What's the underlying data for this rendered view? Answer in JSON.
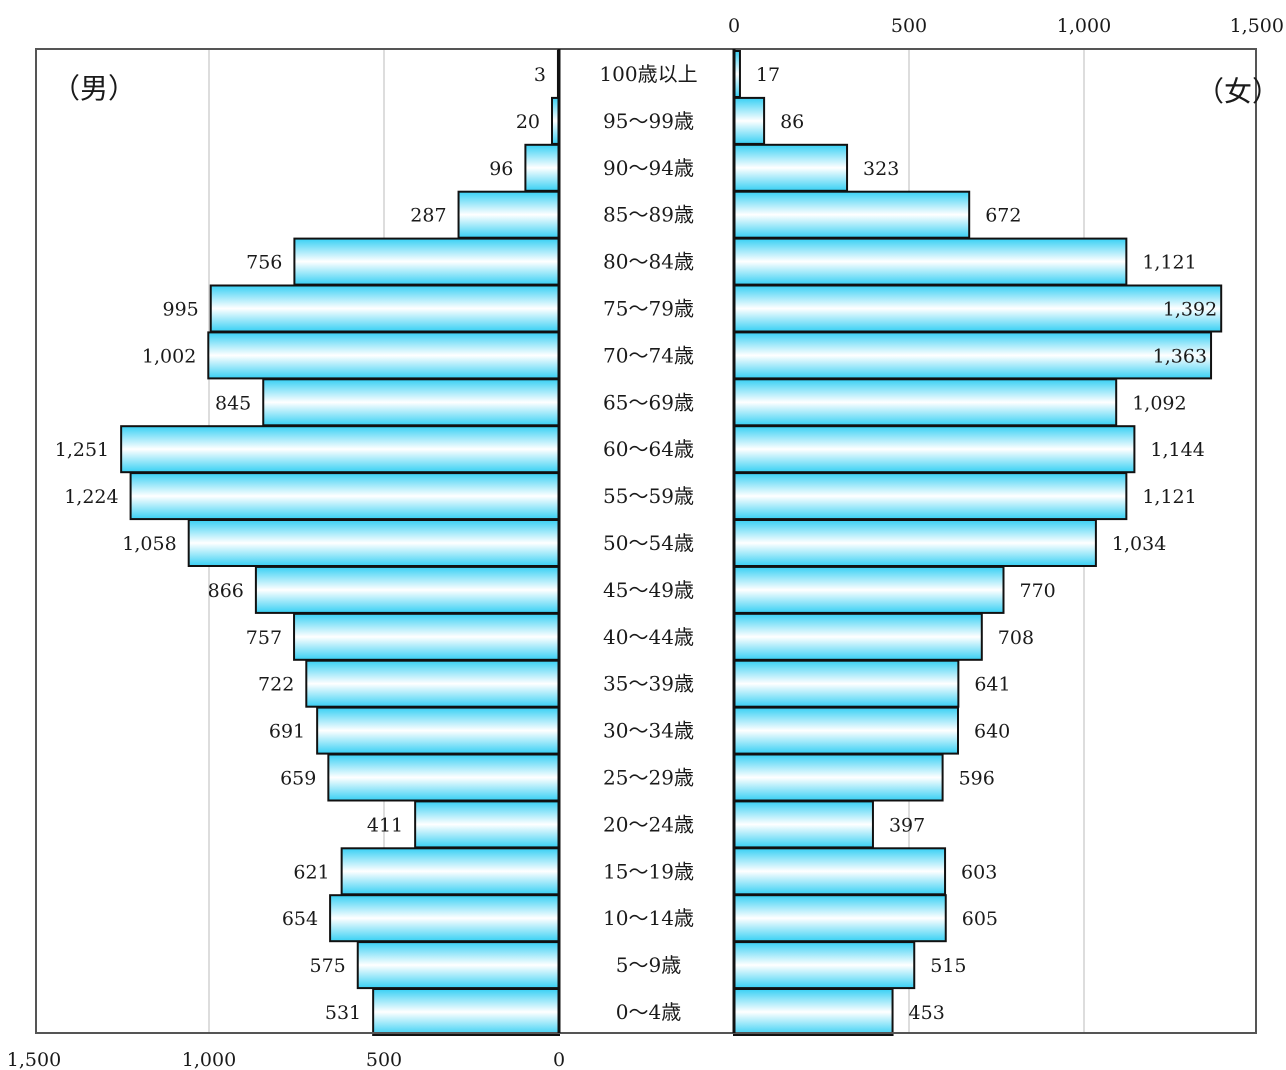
{
  "chart_data": {
    "type": "bar",
    "orientation": "horizontal",
    "layout": "population-pyramid",
    "left_label": "（男）",
    "right_label": "（女）",
    "categories": [
      "100歳以上",
      "95～99歳",
      "90～94歳",
      "85～89歳",
      "80～84歳",
      "75～79歳",
      "70～74歳",
      "65～69歳",
      "60～64歳",
      "55～59歳",
      "50～54歳",
      "45～49歳",
      "40～44歳",
      "35～39歳",
      "30～34歳",
      "25～29歳",
      "20～24歳",
      "15～19歳",
      "10～14歳",
      "5～9歳",
      "0～4歳"
    ],
    "series": [
      {
        "name": "（男）",
        "values": [
          3,
          20,
          96,
          287,
          756,
          995,
          1002,
          845,
          1251,
          1224,
          1058,
          866,
          757,
          722,
          691,
          659,
          411,
          621,
          654,
          575,
          531
        ]
      },
      {
        "name": "（女）",
        "values": [
          17,
          86,
          323,
          672,
          1121,
          1392,
          1363,
          1092,
          1144,
          1121,
          1034,
          770,
          708,
          641,
          640,
          596,
          397,
          603,
          605,
          515,
          453
        ]
      }
    ],
    "value_labels": {
      "male": [
        "3",
        "20",
        "96",
        "287",
        "756",
        "995",
        "1,002",
        "845",
        "1,251",
        "1,224",
        "1,058",
        "866",
        "757",
        "722",
        "691",
        "659",
        "411",
        "621",
        "654",
        "575",
        "531"
      ],
      "female": [
        "17",
        "86",
        "323",
        "672",
        "1,121",
        "1,392",
        "1,363",
        "1,092",
        "1,144",
        "1,121",
        "1,034",
        "770",
        "708",
        "641",
        "640",
        "596",
        "397",
        "603",
        "605",
        "515",
        "453"
      ]
    },
    "male_axis_ticks": [
      "1,500",
      "1,000",
      "500",
      "0"
    ],
    "female_axis_ticks": [
      "0",
      "500",
      "1,000",
      "1,500"
    ],
    "xlim": [
      0,
      1500
    ],
    "male_axis_position": "bottom",
    "female_axis_position": "top",
    "grid": true,
    "colors": {
      "bar_edge": "#38d0f4",
      "bar_center": "#ffffff",
      "outline": "#111111",
      "grid": "#bbbbbb"
    }
  }
}
